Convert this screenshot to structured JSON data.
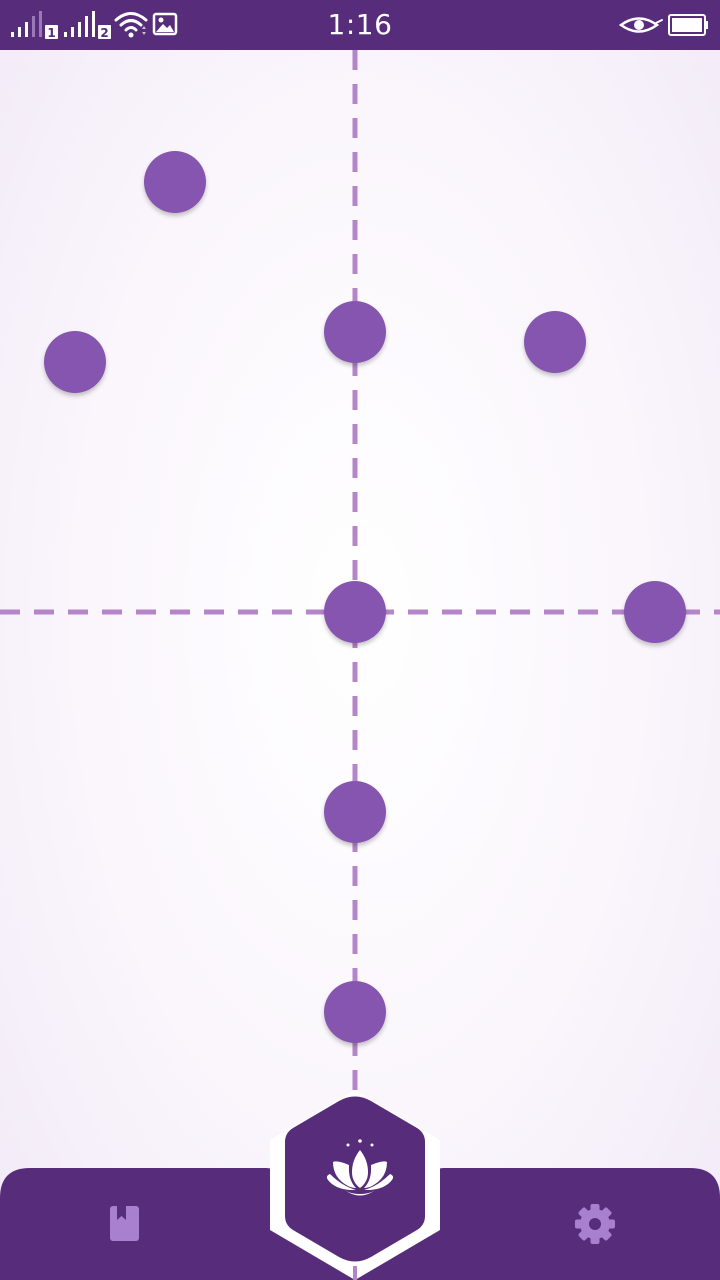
{
  "status_bar": {
    "time": "1:16",
    "icons": [
      "signal-sim1-icon",
      "signal-sim2-icon",
      "wifi-icon",
      "image-notification-icon",
      "eye-icon",
      "battery-icon"
    ],
    "sim1_label": "1",
    "sim2_label": "2"
  },
  "theme": {
    "primary": "#562c7b",
    "dot": "#8654b0",
    "guide_line": "#b585c9",
    "icon_muted": "#a97fcf",
    "background": "#faf6fc"
  },
  "bottom_nav": {
    "left_icon": "bookmark-book-icon",
    "center_icon": "lotus-icon",
    "right_icon": "gear-icon"
  }
}
